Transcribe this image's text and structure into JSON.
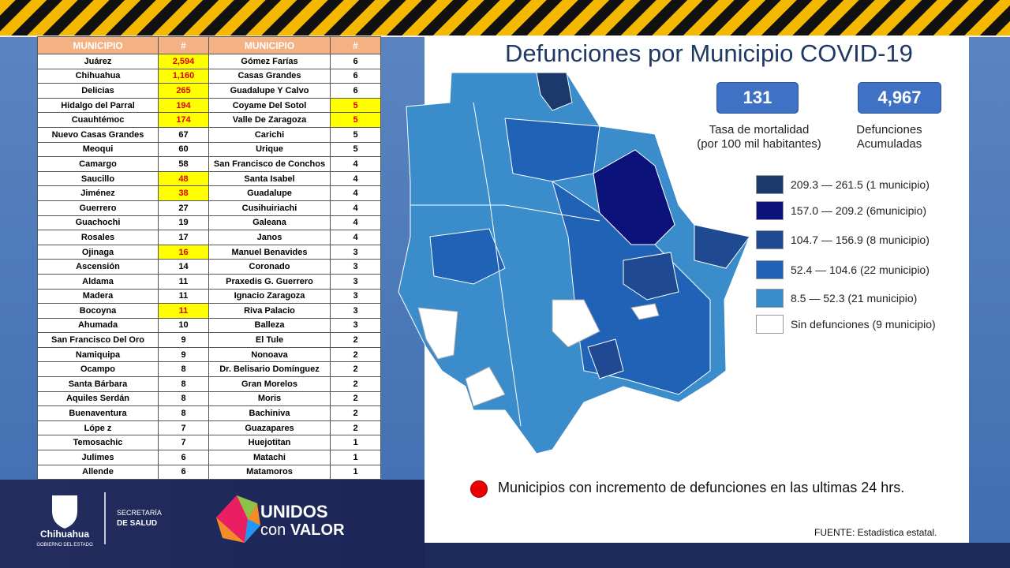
{
  "header": {
    "title": "Defunciones por Municipio COVID-19"
  },
  "table": {
    "headers": [
      "MUNICIPIO",
      "#",
      "MUNICIPIO",
      "#"
    ],
    "highlight_color": "#ffff00",
    "rows": [
      [
        "Juárez",
        {
          "text": "2,594",
          "highlight": true
        },
        "Gómez Farías",
        "6"
      ],
      [
        "Chihuahua",
        {
          "text": "1,160",
          "highlight": true
        },
        "Casas Grandes",
        "6"
      ],
      [
        "Delicias",
        {
          "text": "265",
          "highlight": true
        },
        "Guadalupe Y Calvo",
        "6"
      ],
      [
        "Hidalgo del Parral",
        {
          "text": "194",
          "highlight": true
        },
        "Coyame Del Sotol",
        {
          "text": "5",
          "highlight": true
        }
      ],
      [
        "Cuauhtémoc",
        {
          "text": "174",
          "highlight": true
        },
        "Valle De Zaragoza",
        {
          "text": "5",
          "highlight": true
        }
      ],
      [
        "Nuevo Casas Grandes",
        "67",
        "Carichi",
        "5"
      ],
      [
        "Meoqui",
        "60",
        "Urique",
        "5"
      ],
      [
        "Camargo",
        "58",
        "San Francisco de Conchos",
        "4"
      ],
      [
        "Saucillo",
        {
          "text": "48",
          "highlight": true
        },
        "Santa Isabel",
        "4"
      ],
      [
        "Jiménez",
        {
          "text": "38",
          "highlight": true
        },
        "Guadalupe",
        "4"
      ],
      [
        "Guerrero",
        "27",
        "Cusihuiriachi",
        "4"
      ],
      [
        "Guachochi",
        "19",
        "Galeana",
        "4"
      ],
      [
        "Rosales",
        "17",
        "Janos",
        "4"
      ],
      [
        "Ojinaga",
        {
          "text": "16",
          "highlight": true
        },
        "Manuel Benavides",
        "3"
      ],
      [
        "Ascensión",
        "14",
        "Coronado",
        "3"
      ],
      [
        "Aldama",
        "11",
        "Praxedis G. Guerrero",
        "3"
      ],
      [
        "Madera",
        "11",
        "Ignacio Zaragoza",
        "3"
      ],
      [
        "Bocoyna",
        {
          "text": "11",
          "highlight": true
        },
        "Riva Palacio",
        "3"
      ],
      [
        "Ahumada",
        "10",
        "Balleza",
        "3"
      ],
      [
        "San Francisco Del Oro",
        "9",
        "El Tule",
        "2"
      ],
      [
        "Namiquipa",
        "9",
        "Nonoava",
        "2"
      ],
      [
        "Ocampo",
        "8",
        "Dr. Belisario Domínguez",
        "2"
      ],
      [
        "Santa Bárbara",
        "8",
        "Gran Morelos",
        "2"
      ],
      [
        "Aquiles Serdán",
        "8",
        "Moris",
        "2"
      ],
      [
        "Buenaventura",
        "8",
        "Bachiniva",
        "2"
      ],
      [
        "Lópe z",
        "7",
        "Guazapares",
        "2"
      ],
      [
        "Temosachic",
        "7",
        "Huejotitan",
        "1"
      ],
      [
        "Julimes",
        "6",
        "Matachi",
        "1"
      ],
      [
        "Allende",
        "6",
        "Matamoros",
        "1"
      ]
    ]
  },
  "stats": [
    {
      "value": "131",
      "label": "Tasa de mortalidad\n(por 100 mil habitantes)"
    },
    {
      "value": "4,967",
      "label": "Defunciones\nAcumuladas"
    }
  ],
  "legend": [
    {
      "label": "209.3 — 261.5 (1 municipio)",
      "color": "#1b3a6b"
    },
    {
      "label": "157.0 — 209.2 (6municipio)",
      "color": "#0b137a"
    },
    {
      "label": "104.7 — 156.9 (8 municipio)",
      "color": "#1f4a92"
    },
    {
      "label": "52.4 — 104.6 (22 municipio)",
      "color": "#1f62b6"
    },
    {
      "label": "8.5 — 52.3 (21 municipio)",
      "color": "#3a8ccb"
    },
    {
      "label": "Sin defunciones (9 municipio)",
      "color": "#ffffff"
    }
  ],
  "note": "Municipios con incremento de defunciones en las ultimas 24 hrs.",
  "source": "FUENTE:  Estadística estatal.",
  "logos": {
    "state": "Chihuahua",
    "state_sub": "GOBIERNO DEL ESTADO",
    "dept_1": "SECRETARÍA",
    "dept_2": "DE SALUD",
    "slogan_1": "UNIDOS",
    "slogan_2": "con",
    "slogan_3": "VALOR"
  }
}
